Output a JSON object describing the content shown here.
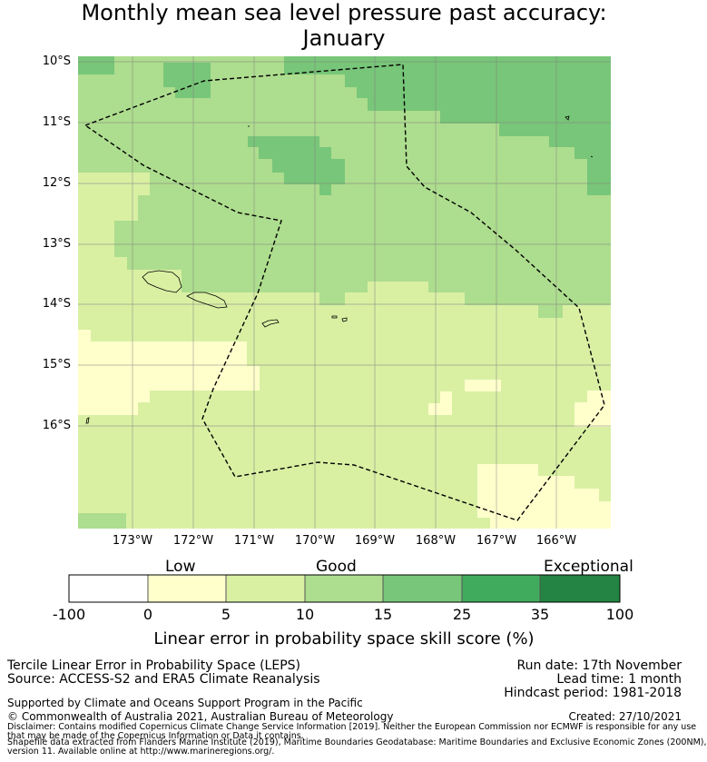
{
  "title": {
    "line1": "Monthly mean sea level pressure past accuracy:",
    "line2": "January"
  },
  "map": {
    "lat_labels": [
      "10°S",
      "11°S",
      "12°S",
      "13°S",
      "14°S",
      "15°S",
      "16°S"
    ],
    "lon_labels": [
      "173°W",
      "172°W",
      "171°W",
      "170°W",
      "169°W",
      "168°W",
      "167°W",
      "166°W"
    ],
    "lon_range": [
      -174.0,
      -165.2
    ],
    "lat_range": [
      -17.7,
      -10.0
    ],
    "region_boundary": "dashed polygon (EEZ boundary)",
    "skill_categories": [
      "Low",
      "Good",
      "Exceptional"
    ]
  },
  "colorbar": {
    "category_labels": {
      "low": "Low",
      "good": "Good",
      "exceptional": "Exceptional"
    },
    "ticks": [
      "-100",
      "0",
      "5",
      "10",
      "15",
      "25",
      "35",
      "100"
    ],
    "colors": [
      "#ffffff",
      "#ffffcc",
      "#d9f0a3",
      "#addd8e",
      "#78c679",
      "#41ab5d",
      "#238443"
    ],
    "xlabel": "Linear error in probability space skill score (%)"
  },
  "footer": {
    "product": "Tercile Linear Error in Probability Space (LEPS)",
    "source": "Source: ACCESS-S2 and ERA5 Climate Reanalysis",
    "run_date": "Run date: 17th November",
    "lead_time": "Lead time: 1 month",
    "hindcast": "Hindcast period: 1981-2018",
    "support": "Supported by Climate and Oceans Support Program in the Pacific",
    "copyright": "© Commonwealth of Australia 2021, Australian Bureau of Meteorology",
    "created": "Created: 27/10/2021",
    "disclaimer1": "Disclaimer: Contains modified Copernicus Climate Change Service Information [2019]. Neither the European Commission nor ECMWF is responsible for any use",
    "disclaimer2": "that may be made of the Copernicus Information or Data it contains.",
    "shapefile1": "Shapefile data extracted from Flanders Marine Institute (2019), Maritime Boundaries Geodatabase: Maritime Boundaries and Exclusive Economic Zones (200NM),",
    "shapefile2": "version 11. Available online at http://www.marineregions.org/."
  }
}
